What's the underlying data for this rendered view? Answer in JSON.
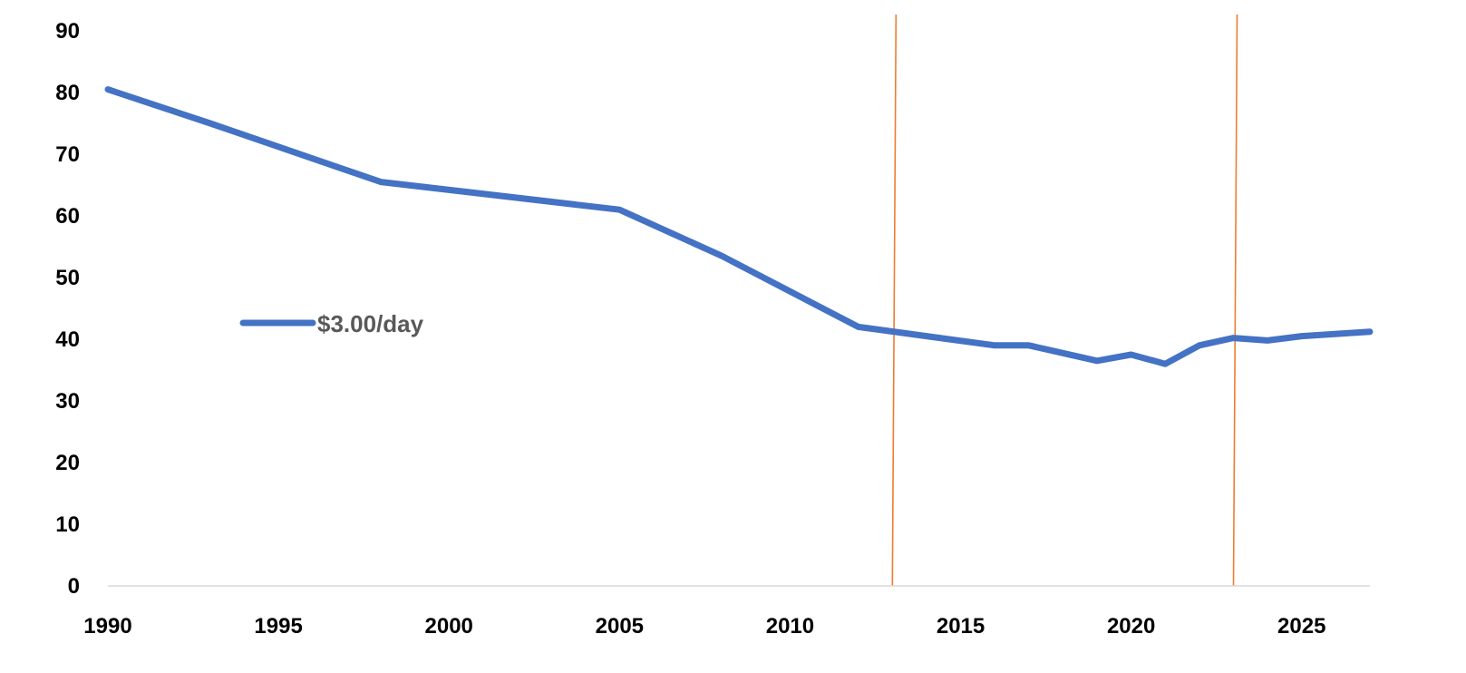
{
  "chart_data": {
    "type": "line",
    "title": "",
    "xlabel": "",
    "ylabel": "",
    "xlim": [
      1990,
      2027
    ],
    "ylim": [
      0,
      90
    ],
    "x_ticks": [
      1990,
      1995,
      2000,
      2005,
      2010,
      2015,
      2020,
      2025
    ],
    "y_ticks": [
      0,
      10,
      20,
      30,
      40,
      50,
      60,
      70,
      80,
      90
    ],
    "grid": false,
    "legend": {
      "position": "left-middle"
    },
    "series": [
      {
        "name": "$3.00/day",
        "color": "#4472C4",
        "x": [
          1990,
          1993,
          1998,
          2005,
          2008,
          2012,
          2014,
          2016,
          2017,
          2019,
          2020,
          2021,
          2022,
          2023,
          2024,
          2025,
          2027
        ],
        "y": [
          80.5,
          75.0,
          65.5,
          61.0,
          53.5,
          42.0,
          40.5,
          39.0,
          39.0,
          36.5,
          37.5,
          36.0,
          39.0,
          40.2,
          39.8,
          40.5,
          41.2
        ]
      }
    ],
    "reference_lines": [
      {
        "x": 2013,
        "color": "#ED7D31"
      },
      {
        "x": 2023,
        "color": "#ED7D31"
      }
    ]
  }
}
